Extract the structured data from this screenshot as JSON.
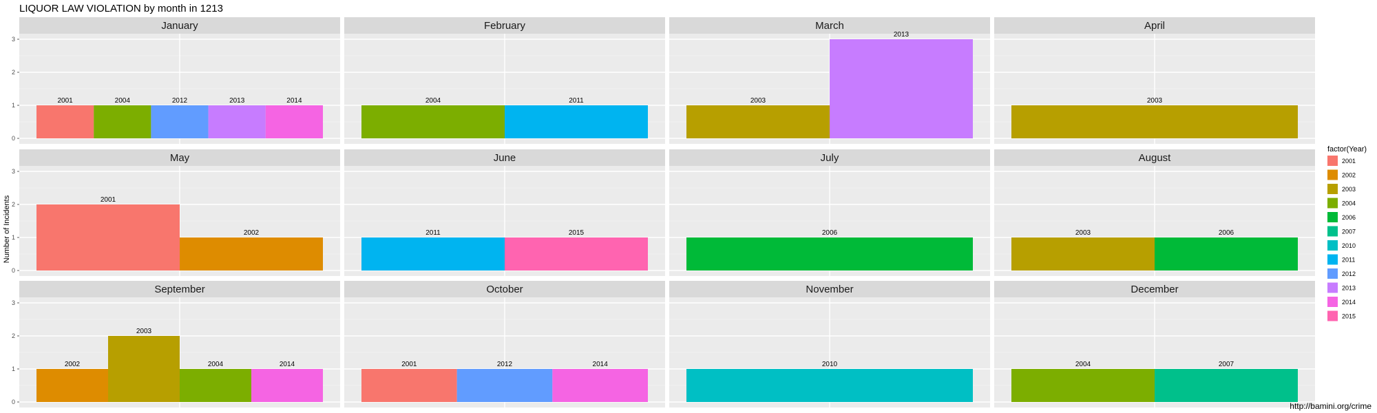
{
  "chart_data": {
    "type": "bar",
    "title": "LIQUOR LAW VIOLATION by month in 1213",
    "ylabel": "Number of Incidents",
    "xlabel": "",
    "ylim": [
      0,
      3
    ],
    "yticks": [
      0,
      1,
      2,
      3
    ],
    "grid": true,
    "legend": {
      "title": "factor(Year)",
      "placement": "right",
      "items": [
        "2001",
        "2002",
        "2003",
        "2004",
        "2006",
        "2007",
        "2010",
        "2011",
        "2012",
        "2013",
        "2014",
        "2015"
      ]
    },
    "colors": {
      "2001": "#F8766D",
      "2002": "#DE8C00",
      "2003": "#B79F00",
      "2004": "#7CAE00",
      "2006": "#00BA38",
      "2007": "#00C08B",
      "2010": "#00BFC4",
      "2011": "#00B4F0",
      "2012": "#619CFF",
      "2013": "#C77CFF",
      "2014": "#F564E3",
      "2015": "#FF64B0"
    },
    "facets": [
      {
        "month": "January",
        "bars": [
          {
            "year": "2001",
            "value": 1
          },
          {
            "year": "2004",
            "value": 1
          },
          {
            "year": "2012",
            "value": 1
          },
          {
            "year": "2013",
            "value": 1
          },
          {
            "year": "2014",
            "value": 1
          }
        ]
      },
      {
        "month": "February",
        "bars": [
          {
            "year": "2004",
            "value": 1
          },
          {
            "year": "2011",
            "value": 1
          }
        ]
      },
      {
        "month": "March",
        "bars": [
          {
            "year": "2003",
            "value": 1
          },
          {
            "year": "2013",
            "value": 3
          }
        ]
      },
      {
        "month": "April",
        "bars": [
          {
            "year": "2003",
            "value": 1
          }
        ]
      },
      {
        "month": "May",
        "bars": [
          {
            "year": "2001",
            "value": 2
          },
          {
            "year": "2002",
            "value": 1
          }
        ]
      },
      {
        "month": "June",
        "bars": [
          {
            "year": "2011",
            "value": 1
          },
          {
            "year": "2015",
            "value": 1
          }
        ]
      },
      {
        "month": "July",
        "bars": [
          {
            "year": "2006",
            "value": 1
          }
        ]
      },
      {
        "month": "August",
        "bars": [
          {
            "year": "2003",
            "value": 1
          },
          {
            "year": "2006",
            "value": 1
          }
        ]
      },
      {
        "month": "September",
        "bars": [
          {
            "year": "2002",
            "value": 1
          },
          {
            "year": "2003",
            "value": 2
          },
          {
            "year": "2004",
            "value": 1
          },
          {
            "year": "2014",
            "value": 1
          }
        ]
      },
      {
        "month": "October",
        "bars": [
          {
            "year": "2001",
            "value": 1
          },
          {
            "year": "2012",
            "value": 1
          },
          {
            "year": "2014",
            "value": 1
          }
        ]
      },
      {
        "month": "November",
        "bars": [
          {
            "year": "2010",
            "value": 1
          }
        ]
      },
      {
        "month": "December",
        "bars": [
          {
            "year": "2004",
            "value": 1
          },
          {
            "year": "2007",
            "value": 1
          }
        ]
      }
    ],
    "caption": "http://bamini.org/crime"
  }
}
